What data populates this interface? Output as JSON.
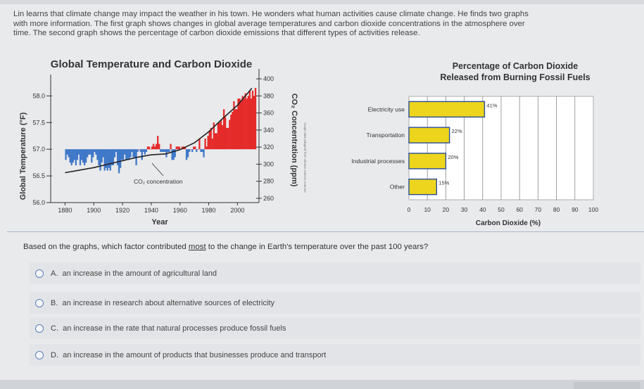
{
  "intro": {
    "line1": "Lin learns that climate change may impact the weather in his town. He wonders what human activities cause climate change. He finds two graphs",
    "line2": "with more information. The first graph shows changes in global average temperatures and carbon dioxide concentrations in the atmosphere over",
    "line3": "time. The second graph shows the percentage of carbon dioxide emissions that different types of activities release."
  },
  "question": {
    "prefix": "Based on the graphs, which factor contributed ",
    "emphasis": "most",
    "suffix": " to the change in Earth's temperature over the past 100 years?"
  },
  "choices": [
    {
      "letter": "A.",
      "text": "an increase in the amount of agricultural land"
    },
    {
      "letter": "B.",
      "text": "an increase in research about alternative sources of electricity"
    },
    {
      "letter": "C.",
      "text": "an increase in the rate that natural processes produce fossil fuels"
    },
    {
      "letter": "D.",
      "text": "an increase in the amount of products that businesses produce and transport"
    }
  ],
  "colors": {
    "warm": "#e52a2a",
    "cool": "#3f78c8",
    "bar": "#ecd51c",
    "bar_border": "#2a4e9a"
  },
  "chart_data": [
    {
      "type": "bar",
      "title": "Global Temperature and Carbon Dioxide",
      "xlabel": "Year",
      "ylabel": "Global Temperature (°F)",
      "y2label": "CO₂ Concentration (ppm)",
      "xlim": [
        1870,
        2015
      ],
      "ylim": [
        56.0,
        58.4
      ],
      "y2lim": [
        255,
        405
      ],
      "xticks": [
        1880,
        1900,
        1920,
        1940,
        1960,
        1980,
        2000
      ],
      "yticks": [
        56.0,
        56.5,
        57.0,
        57.5,
        58.0
      ],
      "yticklabels": [
        "56.0",
        "56.5",
        "57.0",
        "57.5",
        "58.0"
      ],
      "y2ticks": [
        260,
        280,
        300,
        320,
        340,
        360,
        380,
        400
      ],
      "baseline": 57.0,
      "annotation": "CO₂ concentration",
      "side_note": "Graph data adapted from climate science sources",
      "series": [
        {
          "name": "Temperature anomaly (°F)",
          "x_start": 1880,
          "x_step": 1,
          "values": [
            56.8,
            56.9,
            56.85,
            56.75,
            56.7,
            56.75,
            56.8,
            56.7,
            56.8,
            56.9,
            56.7,
            56.8,
            56.75,
            56.7,
            56.75,
            56.85,
            56.9,
            56.9,
            56.75,
            56.85,
            56.95,
            56.9,
            56.8,
            56.7,
            56.6,
            56.75,
            56.85,
            56.6,
            56.65,
            56.6,
            56.65,
            56.6,
            56.7,
            56.7,
            56.85,
            56.95,
            56.7,
            56.55,
            56.65,
            56.8,
            56.8,
            56.9,
            56.8,
            56.8,
            56.8,
            56.85,
            56.95,
            56.85,
            56.85,
            56.7,
            56.95,
            57.0,
            56.95,
            56.8,
            56.95,
            56.9,
            56.95,
            57.05,
            57.05,
            57.0,
            57.05,
            57.1,
            57.05,
            57.1,
            57.25,
            57.1,
            56.95,
            56.95,
            56.95,
            56.95,
            56.85,
            56.95,
            56.95,
            57.1,
            56.8,
            56.8,
            56.85,
            57.05,
            57.05,
            57.05,
            57.0,
            57.05,
            57.05,
            57.05,
            56.8,
            56.85,
            56.95,
            57.0,
            56.95,
            57.05,
            57.05,
            56.95,
            57.0,
            57.2,
            56.95,
            56.95,
            56.85,
            57.2,
            57.05,
            57.25,
            57.35,
            57.4,
            57.2,
            57.5,
            57.3,
            57.3,
            57.5,
            57.5,
            57.55,
            57.45,
            57.75,
            57.6,
            57.4,
            57.4,
            57.55,
            57.65,
            57.7,
            57.9,
            57.75,
            57.75,
            57.95,
            57.95,
            57.9,
            58.0,
            57.95,
            58.05,
            57.95,
            58.0,
            58.1,
            57.95,
            58.1,
            58.0,
            58.15
          ]
        },
        {
          "name": "CO₂ concentration (ppm)",
          "x": [
            1880,
            1890,
            1900,
            1910,
            1920,
            1930,
            1940,
            1950,
            1960,
            1970,
            1980,
            1990,
            2000,
            2010
          ],
          "values": [
            290,
            293,
            296,
            300,
            304,
            308,
            311,
            312,
            317,
            325,
            338,
            354,
            369,
            389
          ]
        }
      ]
    },
    {
      "type": "bar",
      "orientation": "horizontal",
      "title": "Percentage of Carbon Dioxide Released from Burning Fossil Fuels",
      "xlabel": "Carbon Dioxide (%)",
      "xlim": [
        0,
        100
      ],
      "xticks": [
        0,
        10,
        20,
        30,
        40,
        50,
        60,
        70,
        80,
        90,
        100
      ],
      "categories": [
        "Electricity use",
        "Transportation",
        "Industrial processes",
        "Other"
      ],
      "values": [
        41,
        22,
        20,
        15
      ],
      "data_labels": [
        "41%",
        "22%",
        "20%",
        "15%"
      ]
    }
  ]
}
